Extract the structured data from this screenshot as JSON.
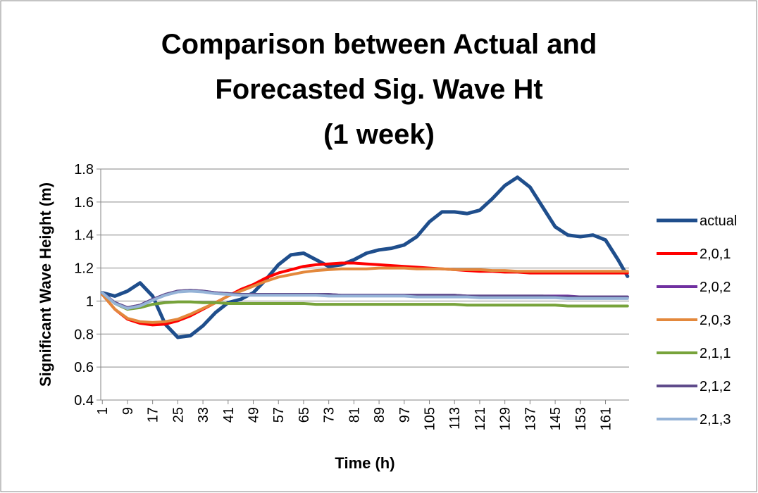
{
  "chart_data": {
    "type": "line",
    "title": [
      "Comparison between Actual and",
      "Forecasted Sig. Wave Ht",
      "(1 week)"
    ],
    "x_label": "Time (h)",
    "y_label": "Significant Wave Height (m)",
    "x": [
      1,
      5,
      9,
      13,
      17,
      21,
      25,
      29,
      33,
      37,
      41,
      45,
      49,
      53,
      57,
      61,
      65,
      69,
      73,
      77,
      81,
      85,
      89,
      93,
      97,
      101,
      105,
      109,
      113,
      117,
      121,
      125,
      129,
      133,
      137,
      141,
      145,
      149,
      153,
      157,
      161,
      165,
      168
    ],
    "xlim": [
      0.5,
      168.5
    ],
    "xticks": [
      1,
      9,
      17,
      25,
      33,
      41,
      49,
      57,
      65,
      73,
      81,
      89,
      97,
      105,
      113,
      121,
      129,
      137,
      145,
      153,
      161
    ],
    "ylim": [
      0.4,
      1.8
    ],
    "yticks": [
      0.4,
      0.6,
      0.8,
      1,
      1.2,
      1.4,
      1.6,
      1.8
    ],
    "grid": true,
    "legend": "right",
    "series": [
      {
        "name": "actual",
        "color": "#1f4e8c",
        "values": [
          1.05,
          1.03,
          1.06,
          1.11,
          1.03,
          0.86,
          0.78,
          0.79,
          0.85,
          0.93,
          0.99,
          1.01,
          1.05,
          1.13,
          1.22,
          1.28,
          1.29,
          1.25,
          1.21,
          1.22,
          1.25,
          1.29,
          1.31,
          1.32,
          1.34,
          1.39,
          1.48,
          1.54,
          1.54,
          1.53,
          1.55,
          1.62,
          1.7,
          1.75,
          1.69,
          1.57,
          1.45,
          1.4,
          1.39,
          1.4,
          1.37,
          1.25,
          1.15
        ]
      },
      {
        "name": "2,0,1",
        "color": "#ff0000",
        "values": [
          1.04,
          0.95,
          0.89,
          0.865,
          0.855,
          0.86,
          0.88,
          0.91,
          0.95,
          0.99,
          1.03,
          1.07,
          1.1,
          1.14,
          1.17,
          1.19,
          1.21,
          1.22,
          1.225,
          1.23,
          1.23,
          1.225,
          1.22,
          1.215,
          1.21,
          1.205,
          1.2,
          1.195,
          1.19,
          1.185,
          1.18,
          1.18,
          1.175,
          1.175,
          1.17,
          1.17,
          1.17,
          1.17,
          1.17,
          1.17,
          1.17,
          1.17,
          1.17
        ]
      },
      {
        "name": "2,0,2",
        "color": "#7030a0",
        "values": [
          1.05,
          0.99,
          0.96,
          0.975,
          1.01,
          1.04,
          1.06,
          1.065,
          1.06,
          1.05,
          1.045,
          1.04,
          1.04,
          1.04,
          1.04,
          1.04,
          1.04,
          1.04,
          1.04,
          1.035,
          1.035,
          1.035,
          1.035,
          1.035,
          1.035,
          1.035,
          1.035,
          1.035,
          1.035,
          1.03,
          1.03,
          1.03,
          1.03,
          1.03,
          1.03,
          1.03,
          1.03,
          1.03,
          1.025,
          1.025,
          1.025,
          1.025,
          1.025
        ]
      },
      {
        "name": "2,0,3",
        "color": "#e3883c",
        "values": [
          1.04,
          0.95,
          0.895,
          0.875,
          0.87,
          0.875,
          0.89,
          0.92,
          0.955,
          0.99,
          1.03,
          1.06,
          1.09,
          1.12,
          1.145,
          1.16,
          1.175,
          1.185,
          1.19,
          1.195,
          1.195,
          1.195,
          1.2,
          1.2,
          1.2,
          1.195,
          1.195,
          1.195,
          1.19,
          1.19,
          1.19,
          1.185,
          1.185,
          1.18,
          1.18,
          1.18,
          1.18,
          1.18,
          1.18,
          1.18,
          1.18,
          1.18,
          1.18
        ]
      },
      {
        "name": "2,1,1",
        "color": "#77a33a",
        "values": [
          1.05,
          0.985,
          0.95,
          0.96,
          0.98,
          0.99,
          0.995,
          0.995,
          0.99,
          0.99,
          0.985,
          0.985,
          0.985,
          0.985,
          0.985,
          0.985,
          0.985,
          0.98,
          0.98,
          0.98,
          0.98,
          0.98,
          0.98,
          0.98,
          0.98,
          0.98,
          0.98,
          0.98,
          0.98,
          0.975,
          0.975,
          0.975,
          0.975,
          0.975,
          0.975,
          0.975,
          0.975,
          0.97,
          0.97,
          0.97,
          0.97,
          0.97,
          0.97
        ]
      },
      {
        "name": "2,1,2",
        "color": "#5f4b8b",
        "values": [
          1.05,
          0.99,
          0.96,
          0.975,
          1.01,
          1.04,
          1.06,
          1.065,
          1.06,
          1.05,
          1.045,
          1.04,
          1.04,
          1.04,
          1.04,
          1.04,
          1.04,
          1.04,
          1.04,
          1.035,
          1.035,
          1.035,
          1.035,
          1.035,
          1.035,
          1.035,
          1.035,
          1.035,
          1.035,
          1.03,
          1.03,
          1.03,
          1.03,
          1.03,
          1.03,
          1.03,
          1.025,
          1.025,
          1.025,
          1.025,
          1.025,
          1.025,
          1.025
        ]
      },
      {
        "name": "2,1,3",
        "color": "#95b3d7",
        "values": [
          1.05,
          0.985,
          0.955,
          0.97,
          1.005,
          1.035,
          1.055,
          1.06,
          1.055,
          1.045,
          1.04,
          1.035,
          1.035,
          1.035,
          1.035,
          1.035,
          1.035,
          1.035,
          1.03,
          1.03,
          1.03,
          1.03,
          1.03,
          1.03,
          1.03,
          1.025,
          1.025,
          1.025,
          1.025,
          1.025,
          1.02,
          1.02,
          1.02,
          1.02,
          1.02,
          1.02,
          1.02,
          1.015,
          1.015,
          1.015,
          1.015,
          1.015,
          1.015
        ]
      }
    ]
  }
}
